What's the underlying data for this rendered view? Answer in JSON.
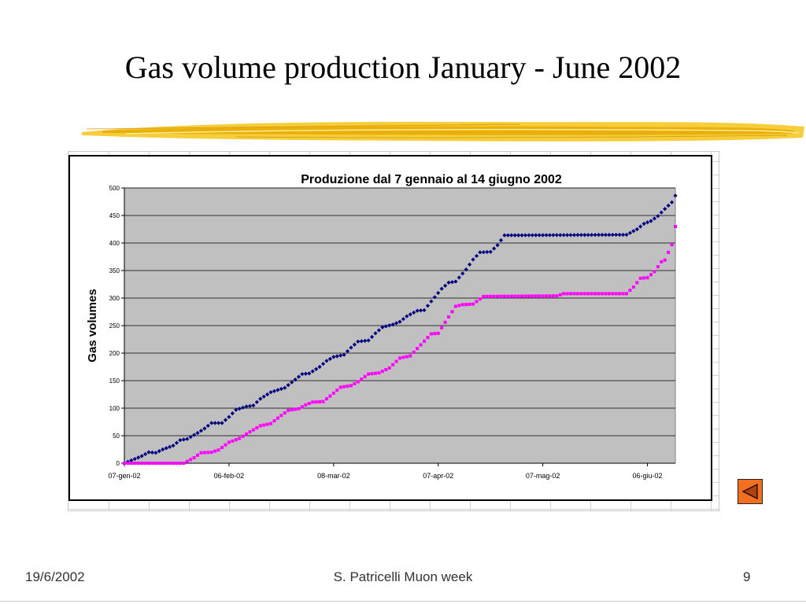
{
  "slide": {
    "title": "Gas volume production January - June 2002",
    "footer_date": "19/6/2002",
    "footer_center": "S. Patricelli Muon week",
    "footer_page": "9"
  },
  "colors": {
    "brush": "#f5c518",
    "plot_bg": "#c0c0c0",
    "series1": "#000080",
    "series2": "#ff00ff",
    "nav_button": "#f07020"
  },
  "icons": {
    "nav_button": "back-triangle-icon"
  },
  "chart_data": {
    "type": "scatter",
    "title": "Produzione dal 7 gennaio al 14 giugno 2002",
    "xlabel": "",
    "ylabel": "Gas volumes",
    "x_start": "2002-01-07",
    "x_end": "2002-06-14",
    "xlim": [
      "2002-01-07",
      "2002-06-14"
    ],
    "ylim": [
      0,
      500
    ],
    "yticks": [
      0,
      50,
      100,
      150,
      200,
      250,
      300,
      350,
      400,
      450,
      500
    ],
    "xtick_labels": [
      "07-gen-02",
      "06-feb-02",
      "08-mar-02",
      "07-apr-02",
      "07-mag-02",
      "06-giu-02"
    ],
    "xtick_dates": [
      "2002-01-07",
      "2002-02-06",
      "2002-03-08",
      "2002-04-07",
      "2002-05-07",
      "2002-06-06"
    ],
    "grid": true,
    "legend": "none",
    "series": [
      {
        "color": "#000080",
        "marker": "diamond",
        "points": [
          [
            "2002-01-07",
            0
          ],
          [
            "2002-01-12",
            13
          ],
          [
            "2002-01-14",
            20
          ],
          [
            "2002-01-16",
            19
          ],
          [
            "2002-01-18",
            25
          ],
          [
            "2002-01-21",
            32
          ],
          [
            "2002-01-23",
            42
          ],
          [
            "2002-01-25",
            44
          ],
          [
            "2002-01-28",
            55
          ],
          [
            "2002-01-30",
            63
          ],
          [
            "2002-02-01",
            73
          ],
          [
            "2002-02-04",
            73
          ],
          [
            "2002-02-06",
            84
          ],
          [
            "2002-02-08",
            97
          ],
          [
            "2002-02-11",
            103
          ],
          [
            "2002-02-13",
            105
          ],
          [
            "2002-02-15",
            117
          ],
          [
            "2002-02-18",
            129
          ],
          [
            "2002-02-20",
            133
          ],
          [
            "2002-02-22",
            137
          ],
          [
            "2002-02-25",
            152
          ],
          [
            "2002-02-27",
            162
          ],
          [
            "2002-03-01",
            163
          ],
          [
            "2002-03-04",
            175
          ],
          [
            "2002-03-06",
            186
          ],
          [
            "2002-03-08",
            193
          ],
          [
            "2002-03-11",
            197
          ],
          [
            "2002-03-13",
            210
          ],
          [
            "2002-03-15",
            221
          ],
          [
            "2002-03-18",
            223
          ],
          [
            "2002-03-20",
            236
          ],
          [
            "2002-03-22",
            247
          ],
          [
            "2002-03-25",
            252
          ],
          [
            "2002-03-27",
            257
          ],
          [
            "2002-03-29",
            267
          ],
          [
            "2002-04-01",
            277
          ],
          [
            "2002-04-03",
            278
          ],
          [
            "2002-04-05",
            294
          ],
          [
            "2002-04-08",
            317
          ],
          [
            "2002-04-10",
            328
          ],
          [
            "2002-04-12",
            330
          ],
          [
            "2002-04-15",
            352
          ],
          [
            "2002-04-17",
            370
          ],
          [
            "2002-04-19",
            383
          ],
          [
            "2002-04-22",
            384
          ],
          [
            "2002-04-24",
            396
          ],
          [
            "2002-04-26",
            414
          ],
          [
            "2002-05-31",
            415
          ],
          [
            "2002-06-03",
            425
          ],
          [
            "2002-06-05",
            435
          ],
          [
            "2002-06-07",
            440
          ],
          [
            "2002-06-09",
            449
          ],
          [
            "2002-06-11",
            462
          ],
          [
            "2002-06-13",
            474
          ],
          [
            "2002-06-14",
            486
          ]
        ]
      },
      {
        "color": "#ff00ff",
        "marker": "square",
        "points": [
          [
            "2002-01-07",
            0
          ],
          [
            "2002-01-20",
            0
          ],
          [
            "2002-01-24",
            0
          ],
          [
            "2002-01-27",
            10
          ],
          [
            "2002-01-29",
            19
          ],
          [
            "2002-02-01",
            20
          ],
          [
            "2002-02-03",
            24
          ],
          [
            "2002-02-06",
            38
          ],
          [
            "2002-02-09",
            45
          ],
          [
            "2002-02-12",
            57
          ],
          [
            "2002-02-15",
            68
          ],
          [
            "2002-02-18",
            72
          ],
          [
            "2002-02-20",
            82
          ],
          [
            "2002-02-23",
            96
          ],
          [
            "2002-02-26",
            99
          ],
          [
            "2002-02-28",
            106
          ],
          [
            "2002-03-02",
            111
          ],
          [
            "2002-03-05",
            112
          ],
          [
            "2002-03-07",
            122
          ],
          [
            "2002-03-10",
            138
          ],
          [
            "2002-03-13",
            141
          ],
          [
            "2002-03-15",
            148
          ],
          [
            "2002-03-18",
            162
          ],
          [
            "2002-03-21",
            164
          ],
          [
            "2002-03-24",
            173
          ],
          [
            "2002-03-27",
            191
          ],
          [
            "2002-03-30",
            195
          ],
          [
            "2002-04-02",
            215
          ],
          [
            "2002-04-05",
            235
          ],
          [
            "2002-04-07",
            236
          ],
          [
            "2002-04-09",
            256
          ],
          [
            "2002-04-12",
            285
          ],
          [
            "2002-04-14",
            288
          ],
          [
            "2002-04-17",
            289
          ],
          [
            "2002-04-20",
            303
          ],
          [
            "2002-05-11",
            304
          ],
          [
            "2002-05-13",
            308
          ],
          [
            "2002-05-31",
            308
          ],
          [
            "2002-06-02",
            320
          ],
          [
            "2002-06-04",
            336
          ],
          [
            "2002-06-06",
            337
          ],
          [
            "2002-06-08",
            348
          ],
          [
            "2002-06-10",
            366
          ],
          [
            "2002-06-11",
            369
          ],
          [
            "2002-06-13",
            397
          ],
          [
            "2002-06-14",
            430
          ]
        ]
      }
    ]
  }
}
